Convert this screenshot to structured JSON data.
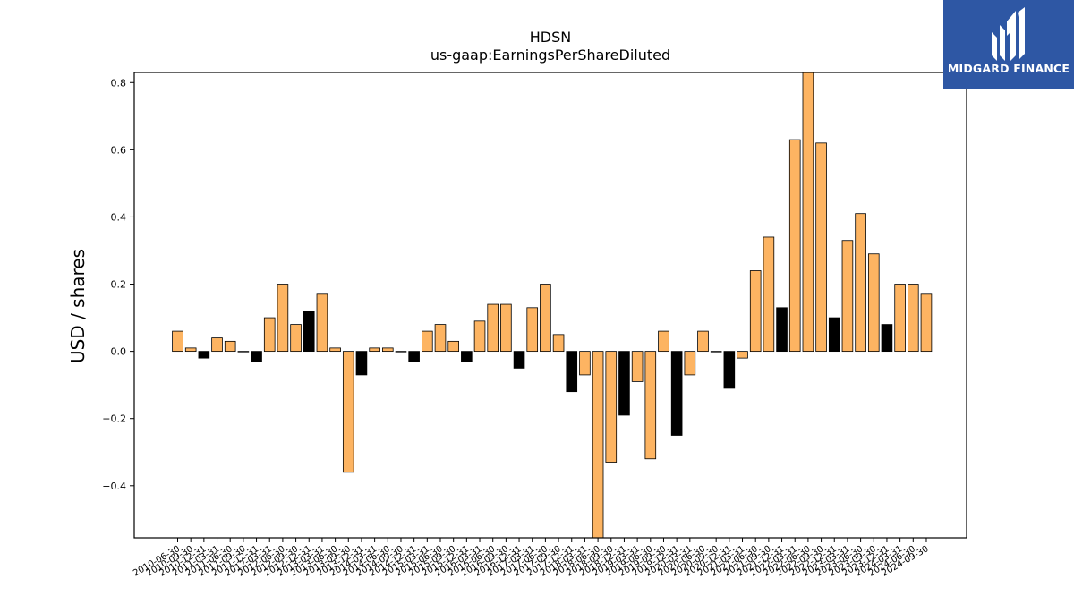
{
  "chart_data": {
    "type": "bar",
    "title": "HDSN",
    "subtitle": "us-gaap:EarningsPerShareDiluted",
    "xlabel": "",
    "ylabel": "USD / shares",
    "ylim": [
      -0.555,
      0.83
    ],
    "yticks": [
      -0.4,
      -0.2,
      0.0,
      0.2,
      0.4,
      0.6,
      0.8
    ],
    "ytick_labels": [
      "−0.4",
      "−0.2",
      "0.0",
      "0.2",
      "0.4",
      "0.6",
      "0.8"
    ],
    "grid": false,
    "categories": [
      "2010-06-30",
      "2010-09-30",
      "2010-12-31",
      "2011-03-31",
      "2011-06-30",
      "2011-09-30",
      "2011-12-31",
      "2012-03-31",
      "2012-06-30",
      "2012-09-30",
      "2012-12-31",
      "2013-03-31",
      "2013-06-30",
      "2013-09-30",
      "2013-12-31",
      "2014-03-31",
      "2014-06-30",
      "2014-09-30",
      "2014-12-31",
      "2015-03-31",
      "2015-06-30",
      "2015-09-30",
      "2015-12-31",
      "2016-03-31",
      "2016-06-30",
      "2016-09-30",
      "2016-12-31",
      "2017-03-31",
      "2017-06-30",
      "2017-09-30",
      "2017-12-31",
      "2018-03-31",
      "2018-06-30",
      "2018-09-30",
      "2018-12-31",
      "2019-03-31",
      "2019-06-30",
      "2019-09-30",
      "2019-12-31",
      "2020-03-31",
      "2020-06-30",
      "2020-09-30",
      "2020-12-31",
      "2021-03-31",
      "2021-06-30",
      "2021-09-30",
      "2021-12-31",
      "2022-03-31",
      "2022-06-30",
      "2022-09-30",
      "2022-12-31",
      "2023-03-31",
      "2023-06-30",
      "2023-09-30",
      "2023-12-31",
      "2024-03-31",
      "2024-06-30",
      "2024-09-30"
    ],
    "values": [
      0.06,
      0.01,
      -0.02,
      0.04,
      0.03,
      0.0,
      -0.03,
      0.1,
      0.2,
      0.08,
      0.12,
      0.17,
      0.01,
      -0.36,
      -0.07,
      0.01,
      0.01,
      0.0,
      -0.03,
      0.06,
      0.08,
      0.03,
      -0.03,
      0.09,
      0.14,
      0.14,
      -0.05,
      0.13,
      0.2,
      0.05,
      -0.12,
      -0.07,
      -0.56,
      -0.33,
      -0.19,
      -0.09,
      -0.32,
      0.06,
      -0.25,
      -0.07,
      0.06,
      0.0,
      -0.11,
      -0.02,
      0.24,
      0.34,
      0.13,
      0.63,
      0.83,
      0.62,
      0.1,
      0.33,
      0.41,
      0.29,
      0.08,
      0.2,
      0.2,
      0.17
    ],
    "is_q4": [
      false,
      false,
      true,
      false,
      false,
      false,
      true,
      false,
      false,
      false,
      true,
      false,
      false,
      false,
      true,
      false,
      false,
      false,
      true,
      false,
      false,
      false,
      true,
      false,
      false,
      false,
      true,
      false,
      false,
      false,
      true,
      false,
      false,
      false,
      true,
      false,
      false,
      false,
      true,
      false,
      false,
      false,
      true,
      false,
      false,
      false,
      true,
      false,
      false,
      false,
      true,
      false,
      false,
      false,
      true,
      false,
      false,
      false
    ],
    "colors": {
      "bar": "#fdb462",
      "q4_bar": "#000000",
      "edge": "#000000"
    }
  },
  "logo": {
    "text": "MIDGARD FINANCE",
    "background": "#2e57a4"
  }
}
